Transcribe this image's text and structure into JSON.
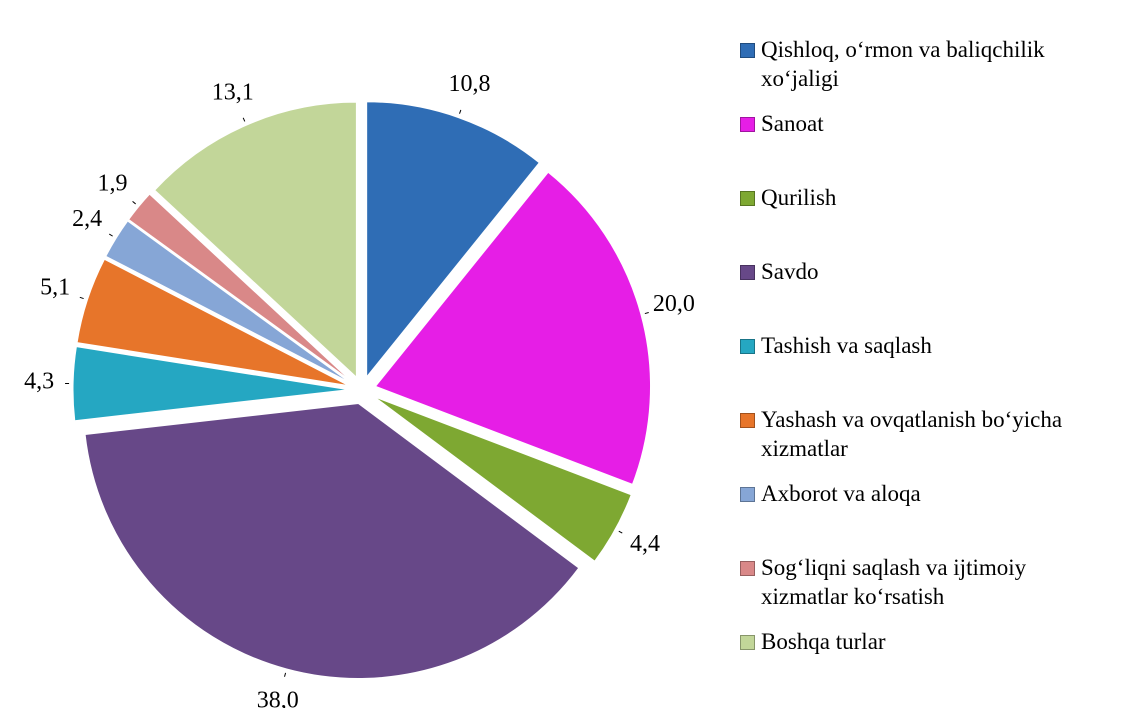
{
  "chart_data": {
    "type": "pie",
    "categories": [
      "Qishloq, o‘rmon va baliqchilik xo‘jaligi",
      "Sanoat",
      "Qurilish",
      "Savdo",
      "Tashish va saqlash",
      "Yashash va ovqatlanish bo‘yicha xizmatlar",
      "Axborot va aloqa",
      "Sog‘liqni saqlash va ijtimoiy xizmatlar ko‘rsatish",
      "Boshqa turlar"
    ],
    "values": [
      10.8,
      20.0,
      4.4,
      38.0,
      4.3,
      5.1,
      2.4,
      1.9,
      13.1
    ],
    "value_labels": [
      "10,8",
      "20,0",
      "4,4",
      "38,0",
      "4,3",
      "5,1",
      "2,4",
      "1,9",
      "13,1"
    ],
    "colors": [
      "#2f6db5",
      "#e61ee6",
      "#7ea832",
      "#674888",
      "#25a7c2",
      "#e7752a",
      "#86a6d6",
      "#d98888",
      "#c2d699"
    ],
    "legend": "right"
  }
}
